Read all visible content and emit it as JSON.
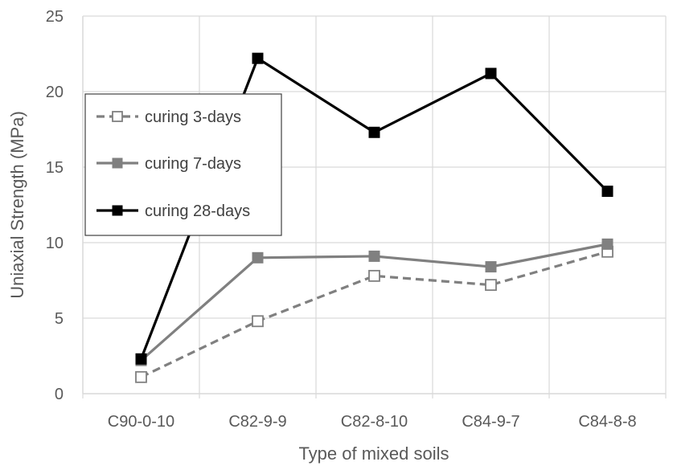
{
  "chart_data": {
    "type": "line",
    "xlabel": "Type of mixed soils",
    "ylabel": "Uniaxial Strength (MPa)",
    "categories": [
      "C90-0-10",
      "C82-9-9",
      "C82-8-10",
      "C84-9-7",
      "C84-8-8"
    ],
    "ylim": [
      0,
      25
    ],
    "yticks": [
      0,
      5,
      10,
      15,
      20,
      25
    ],
    "grid": true,
    "legend_position": "left",
    "series": [
      {
        "name": "curing 3-days",
        "values": [
          1.1,
          4.8,
          7.8,
          7.2,
          9.4
        ],
        "color": "#808080",
        "dashed": true,
        "marker": "hollow-square"
      },
      {
        "name": "curing 7-days",
        "values": [
          2.2,
          9.0,
          9.1,
          8.4,
          9.9
        ],
        "color": "#808080",
        "dashed": false,
        "marker": "filled-square"
      },
      {
        "name": "curing 28-days",
        "values": [
          2.3,
          22.2,
          17.3,
          21.2,
          13.4
        ],
        "color": "#000000",
        "dashed": false,
        "marker": "filled-square"
      }
    ]
  }
}
